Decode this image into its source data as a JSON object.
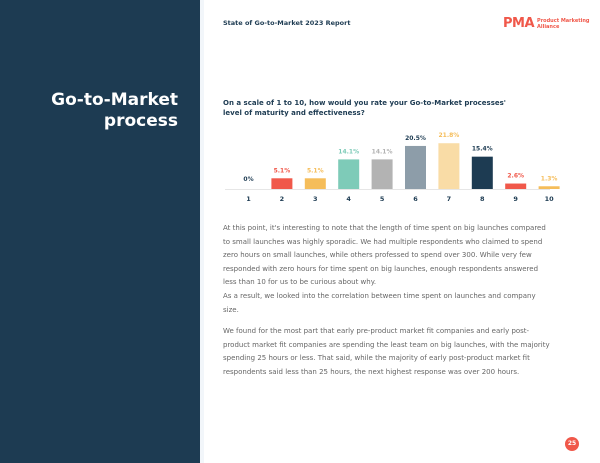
{
  "sidebar": {
    "title_line1": "Go-to-Market",
    "title_line2": "process"
  },
  "header": {
    "report_title": "State of Go-to-Market 2023 Report",
    "logo_mark": "PMA",
    "logo_name_line1": "Product Marketing",
    "logo_name_line2": "Alliance"
  },
  "question": "On a scale of 1 to 10, how would you rate your Go-to-Market processes' level of maturity and effectiveness?",
  "chart_data": {
    "type": "bar",
    "categories": [
      "1",
      "2",
      "3",
      "4",
      "5",
      "6",
      "7",
      "8",
      "9",
      "10"
    ],
    "values": [
      0,
      5.1,
      5.1,
      14.1,
      14.1,
      20.5,
      21.8,
      15.4,
      2.6,
      1.3
    ],
    "labels": [
      "0%",
      "5.1%",
      "5.1%",
      "14.1%",
      "14.1%",
      "20.5%",
      "21.8%",
      "15.4%",
      "2.6%",
      "1.3%"
    ],
    "colors": [
      "#1d3b52",
      "#f0584a",
      "#f5bd5a",
      "#7ecbb8",
      "#b3b3b3",
      "#8d9da9",
      "#f9dca6",
      "#1d3b52",
      "#f0584a",
      "#f5bd5a"
    ],
    "label_colors": [
      "#1d3b52",
      "#f0584a",
      "#f5bd5a",
      "#7ecbb8",
      "#b3b3b3",
      "#1d3b52",
      "#f5bd5a",
      "#1d3b52",
      "#f0584a",
      "#f5bd5a"
    ]
  },
  "body": {
    "p1": "At this point, it's interesting to note that the length of time spent on big launches compared to small launches was highly sporadic. We had multiple respondents who claimed to spend zero hours on small launches, while others professed to spend over 300. While very few responded with zero hours for time spent on big launches, enough respondents answered less than 10 for us to be curious about why.",
    "p2": "As a result, we looked into the correlation between time spent on launches and company size.",
    "p3": "We found for the most part that early pre-product market fit companies and early post-product market fit companies are spending the least team on big launches, with the majority spending 25 hours or less. That said, while the majority of early post-product market fit respondents said less than 25 hours, the next highest response was over 200 hours."
  },
  "page_number": "25"
}
